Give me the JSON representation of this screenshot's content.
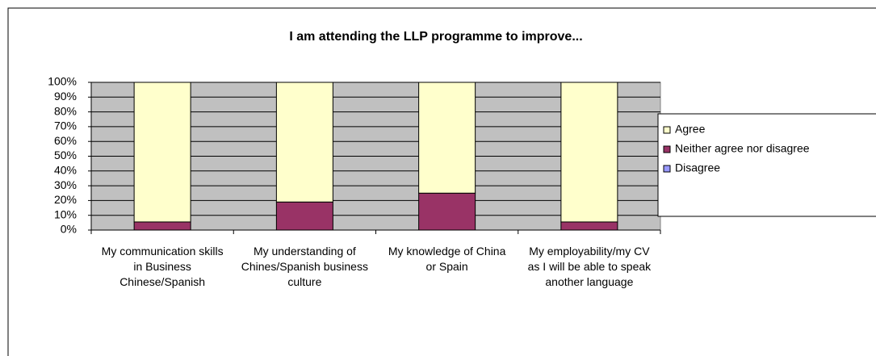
{
  "chart_data": {
    "type": "stacked_bar_100",
    "title": "I am attending the LLP programme to improve...",
    "categories": [
      "My communication skills in Business Chinese/Spanish",
      "My understanding of Chines/Spanish business culture",
      "My knowledge of China or Spain",
      "My employability/my CV as I will be able to speak another language"
    ],
    "series": [
      {
        "name": "Disagree",
        "color": "#9999ff",
        "values": [
          0,
          0,
          0,
          0
        ]
      },
      {
        "name": "Neither agree nor disagree",
        "color": "#993366",
        "values": [
          5.5,
          19,
          25,
          5.5
        ]
      },
      {
        "name": "Agree",
        "color": "#ffffcc",
        "values": [
          94.5,
          81,
          75,
          94.5
        ]
      }
    ],
    "ylim": [
      0,
      100
    ],
    "yticks": [
      {
        "value": 0,
        "label": "0%"
      },
      {
        "value": 10,
        "label": "10%"
      },
      {
        "value": 20,
        "label": "20%"
      },
      {
        "value": 30,
        "label": "30%"
      },
      {
        "value": 40,
        "label": "40%"
      },
      {
        "value": 50,
        "label": "50%"
      },
      {
        "value": 60,
        "label": "60%"
      },
      {
        "value": 70,
        "label": "70%"
      },
      {
        "value": 80,
        "label": "80%"
      },
      {
        "value": 90,
        "label": "90%"
      },
      {
        "value": 100,
        "label": "100%"
      }
    ],
    "grid": true,
    "legend": "right"
  }
}
